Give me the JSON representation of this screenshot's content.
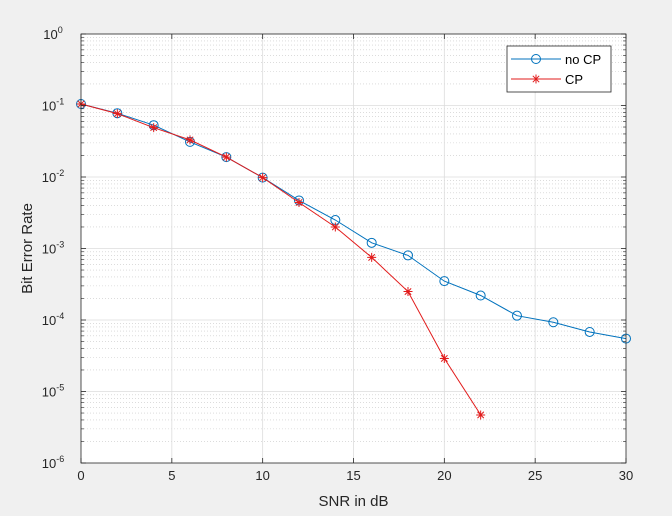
{
  "chart_data": {
    "type": "line",
    "xlabel": "SNR in dB",
    "ylabel": "Bit Error Rate",
    "xlim": [
      0,
      30
    ],
    "ylim": [
      1e-06,
      1
    ],
    "yscale": "log",
    "grid": true,
    "minor_grid": true,
    "x_ticks": [
      "0",
      "5",
      "10",
      "15",
      "20",
      "25",
      "30"
    ],
    "legend_position": "top-right",
    "series": [
      {
        "name": "no CP",
        "color": "#0072BD",
        "marker": "circle",
        "x": [
          0,
          2,
          4,
          6,
          8,
          10,
          12,
          14,
          16,
          18,
          20,
          22,
          24,
          26,
          28,
          30
        ],
        "y": [
          0.105,
          0.078,
          0.053,
          0.031,
          0.019,
          0.0098,
          0.0047,
          0.0025,
          0.0012,
          0.0008,
          0.00035,
          0.00022,
          0.000115,
          9.3e-05,
          6.8e-05,
          5.5e-05
        ]
      },
      {
        "name": "CP",
        "color": "#E21B1B",
        "marker": "asterisk",
        "x": [
          0,
          2,
          4,
          6,
          8,
          10,
          12,
          14,
          16,
          18,
          20,
          22
        ],
        "y": [
          0.105,
          0.077,
          0.049,
          0.033,
          0.019,
          0.0098,
          0.0044,
          0.002,
          0.00075,
          0.00025,
          2.9e-05,
          4.7e-06
        ]
      }
    ]
  }
}
